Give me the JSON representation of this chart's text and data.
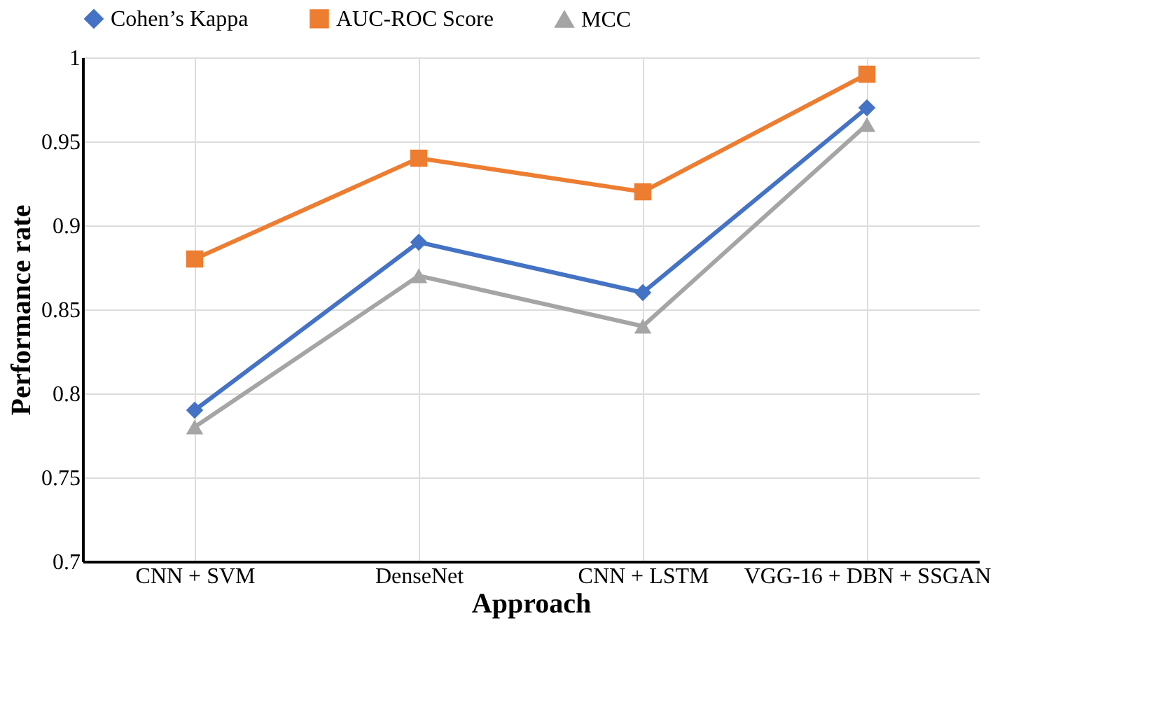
{
  "chart_data": {
    "type": "line",
    "xlabel": "Approach",
    "ylabel": "Performance rate",
    "categories": [
      "CNN + SVM",
      "DenseNet",
      "CNN + LSTM",
      "VGG-16 + DBN + SSGAN"
    ],
    "series": [
      {
        "name": "Cohen’s Kappa",
        "color": "#4472c4",
        "marker": "diamond",
        "values": [
          0.79,
          0.89,
          0.86,
          0.97
        ]
      },
      {
        "name": "AUC-ROC Score",
        "color": "#ed7d31",
        "marker": "square",
        "values": [
          0.88,
          0.94,
          0.92,
          0.99
        ]
      },
      {
        "name": "MCC",
        "color": "#a5a5a5",
        "marker": "triangle",
        "values": [
          0.78,
          0.87,
          0.84,
          0.96
        ]
      }
    ],
    "ylim": [
      0.7,
      1
    ],
    "yticks": [
      0.7,
      0.75,
      0.8,
      0.85,
      0.9,
      0.95,
      1
    ],
    "grid": true,
    "legend": "top",
    "line_style": "solid"
  }
}
